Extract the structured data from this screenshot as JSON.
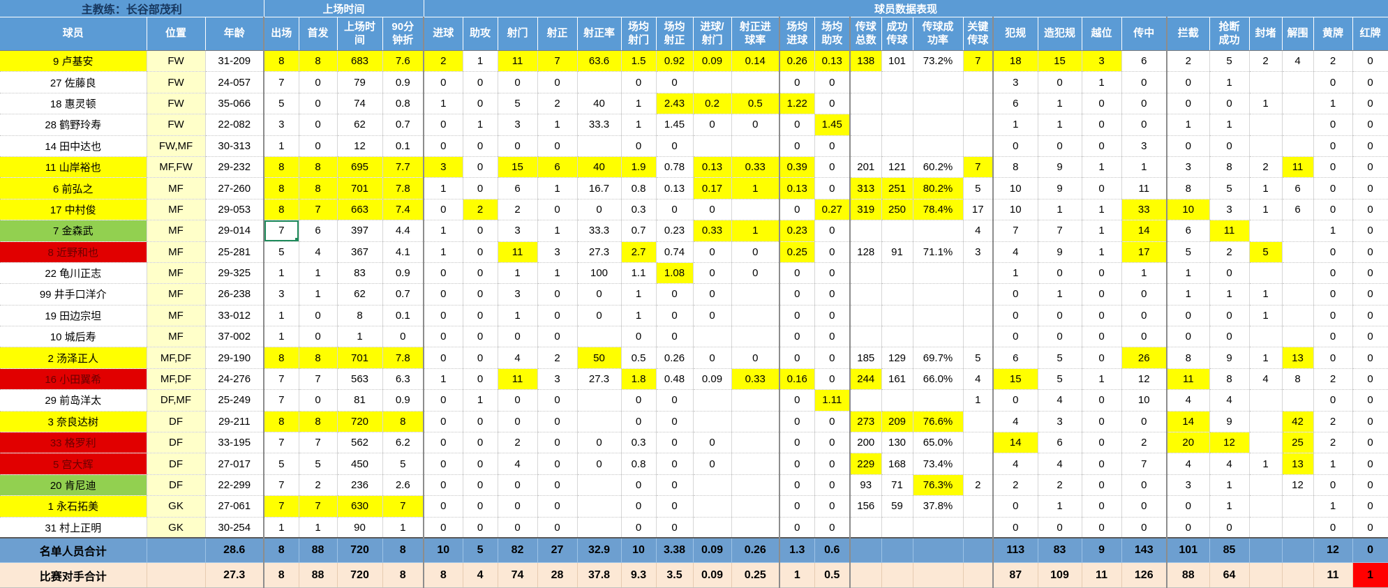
{
  "colors": {
    "header_blue": "#5B9BD5",
    "coach_text": "#17375E",
    "totals_blue": "#6D9FD0",
    "opponent_cream": "#FCE8D5",
    "highlight_yellow": "#FFFF00",
    "row_green": "#92D050",
    "row_red": "#E10000",
    "position_col_yellow": "#FFFFC9",
    "red_card_cell": "#FF0000"
  },
  "header": {
    "coach": "主教练：长谷部茂利",
    "group_playtime": "上场时间",
    "group_performance": "球员数据表现"
  },
  "columns": [
    {
      "key": "player",
      "label": "球员"
    },
    {
      "key": "position",
      "label": "位置"
    },
    {
      "key": "age",
      "label": "年龄"
    },
    {
      "key": "appearances",
      "label": "出场"
    },
    {
      "key": "starts",
      "label": "首发"
    },
    {
      "key": "minutes",
      "label": "上场时\n间"
    },
    {
      "key": "per-90",
      "label": "90分\n钟折"
    },
    {
      "key": "goals",
      "label": "进球"
    },
    {
      "key": "assists",
      "label": "助攻"
    },
    {
      "key": "shots",
      "label": "射门"
    },
    {
      "key": "shots-on-target",
      "label": "射正"
    },
    {
      "key": "shot-accuracy",
      "label": "射正率"
    },
    {
      "key": "shots-per-game",
      "label": "场均\n射门"
    },
    {
      "key": "sot-per-game",
      "label": "场均\n射正"
    },
    {
      "key": "goals-per-shot",
      "label": "进球/\n射门"
    },
    {
      "key": "goals-per-sot",
      "label": "射正进\n球率"
    },
    {
      "key": "goals-per-game",
      "label": "场均\n进球"
    },
    {
      "key": "assists-per-game",
      "label": "场均\n助攻"
    },
    {
      "key": "passes-total",
      "label": "传球\n总数"
    },
    {
      "key": "passes-completed",
      "label": "成功\n传球"
    },
    {
      "key": "pass-accuracy",
      "label": "传球成\n功率"
    },
    {
      "key": "key-passes",
      "label": "关键\n传球"
    },
    {
      "key": "fouls",
      "label": "犯规"
    },
    {
      "key": "fouled",
      "label": "造犯规"
    },
    {
      "key": "offsides",
      "label": "越位"
    },
    {
      "key": "crosses",
      "label": "传中"
    },
    {
      "key": "interceptions",
      "label": "拦截"
    },
    {
      "key": "tackles-won",
      "label": "抢断\n成功"
    },
    {
      "key": "blocks",
      "label": "封堵"
    },
    {
      "key": "clearances",
      "label": "解围"
    },
    {
      "key": "yellow-cards",
      "label": "黄牌"
    },
    {
      "key": "red-cards",
      "label": "红牌"
    }
  ],
  "players": [
    {
      "name": "9 卢基安",
      "row_color": "yellow",
      "cells": [
        "FW",
        "31-209",
        8,
        8,
        683,
        7.6,
        2,
        1,
        11,
        7,
        63.6,
        1.5,
        0.92,
        0.09,
        0.14,
        0.26,
        0.13,
        138,
        101,
        "73.2%",
        7,
        18,
        15,
        3,
        6,
        2,
        5,
        2,
        4,
        2,
        0
      ],
      "hl": [
        3,
        4,
        5,
        6,
        7,
        9,
        10,
        11,
        12,
        13,
        14,
        15,
        16,
        17,
        18,
        21,
        22,
        23,
        24
      ]
    },
    {
      "name": "27 佐藤良",
      "row_color": "none",
      "cells": [
        "FW",
        "24-057",
        7,
        0,
        79,
        0.9,
        0,
        0,
        0,
        0,
        "",
        0,
        0,
        "",
        "",
        0,
        0,
        "",
        "",
        "",
        "",
        3,
        0,
        1,
        0,
        0,
        1,
        "",
        "",
        0,
        0
      ],
      "hl": []
    },
    {
      "name": "18 惠灵顿",
      "row_color": "none",
      "cells": [
        "FW",
        "35-066",
        5,
        0,
        74,
        0.8,
        1,
        0,
        5,
        2,
        40,
        1,
        2.43,
        0.2,
        0.5,
        1.22,
        0,
        "",
        "",
        "",
        "",
        6,
        1,
        0,
        0,
        0,
        0,
        1,
        "",
        1,
        0
      ],
      "hl": [
        13,
        14,
        15,
        16
      ]
    },
    {
      "name": "28 鹤野玲寿",
      "row_color": "none",
      "cells": [
        "FW",
        "22-082",
        3,
        0,
        62,
        0.7,
        0,
        1,
        3,
        1,
        33.3,
        1,
        1.45,
        0,
        0,
        0,
        1.45,
        "",
        "",
        "",
        "",
        1,
        1,
        0,
        0,
        1,
        1,
        "",
        "",
        0,
        0
      ],
      "hl": [
        17
      ]
    },
    {
      "name": "14 田中达也",
      "row_color": "none",
      "cells": [
        "FW,MF",
        "30-313",
        1,
        0,
        12,
        0.1,
        0,
        0,
        0,
        0,
        "",
        0,
        0,
        "",
        "",
        0,
        0,
        "",
        "",
        "",
        "",
        0,
        0,
        0,
        3,
        0,
        0,
        "",
        "",
        0,
        0
      ],
      "hl": []
    },
    {
      "name": "11 山岸裕也",
      "row_color": "yellow",
      "cells": [
        "MF,FW",
        "29-232",
        8,
        8,
        695,
        7.7,
        3,
        0,
        15,
        6,
        40,
        1.9,
        0.78,
        0.13,
        0.33,
        0.39,
        0,
        201,
        121,
        "60.2%",
        7,
        8,
        9,
        1,
        1,
        3,
        8,
        2,
        11,
        0,
        0
      ],
      "hl": [
        3,
        4,
        5,
        6,
        7,
        9,
        10,
        11,
        12,
        14,
        15,
        16,
        21,
        29
      ]
    },
    {
      "name": "6 前弘之",
      "row_color": "yellow",
      "cells": [
        "MF",
        "27-260",
        8,
        8,
        701,
        7.8,
        1,
        0,
        6,
        1,
        16.7,
        0.8,
        0.13,
        0.17,
        1,
        0.13,
        0,
        313,
        251,
        "80.2%",
        5,
        10,
        9,
        0,
        11,
        8,
        5,
        1,
        6,
        0,
        0
      ],
      "hl": [
        3,
        4,
        5,
        6,
        14,
        15,
        16,
        18,
        19,
        20
      ]
    },
    {
      "name": "17 中村俊",
      "row_color": "yellow",
      "cells": [
        "MF",
        "29-053",
        8,
        7,
        663,
        7.4,
        0,
        2,
        2,
        0,
        0,
        0.3,
        0,
        0,
        "",
        0,
        0.27,
        319,
        250,
        "78.4%",
        17,
        10,
        1,
        1,
        33,
        10,
        3,
        1,
        6,
        0,
        0
      ],
      "hl": [
        3,
        4,
        5,
        6,
        8,
        17,
        18,
        19,
        20,
        25,
        26
      ]
    },
    {
      "name": "7 金森武",
      "row_color": "green",
      "selected_col": 3,
      "cells": [
        "MF",
        "29-014",
        7,
        6,
        397,
        4.4,
        1,
        0,
        3,
        1,
        33.3,
        0.7,
        0.23,
        0.33,
        1,
        0.23,
        0,
        "",
        "",
        "",
        4,
        7,
        7,
        1,
        14,
        6,
        11,
        "",
        "",
        1,
        0
      ],
      "hl": [
        14,
        15,
        16,
        25,
        27
      ]
    },
    {
      "name": "8 近野和也",
      "row_color": "red",
      "cells": [
        "MF",
        "25-281",
        5,
        4,
        367,
        4.1,
        1,
        0,
        11,
        3,
        27.3,
        2.7,
        0.74,
        0,
        0,
        0.25,
        0,
        128,
        91,
        "71.1%",
        3,
        4,
        9,
        1,
        17,
        5,
        2,
        5,
        "",
        0,
        0
      ],
      "hl": [
        9,
        12,
        16,
        25,
        28
      ]
    },
    {
      "name": "22 龟川正志",
      "row_color": "none",
      "cells": [
        "MF",
        "29-325",
        1,
        1,
        83,
        0.9,
        0,
        0,
        1,
        1,
        100,
        1.1,
        1.08,
        0,
        0,
        0,
        0,
        "",
        "",
        "",
        "",
        1,
        0,
        0,
        1,
        1,
        0,
        "",
        "",
        0,
        0
      ],
      "hl": [
        13
      ]
    },
    {
      "name": "99 井手口洋介",
      "row_color": "none",
      "cells": [
        "MF",
        "26-238",
        3,
        1,
        62,
        0.7,
        0,
        0,
        3,
        0,
        0,
        1,
        0,
        0,
        "",
        0,
        0,
        "",
        "",
        "",
        "",
        0,
        1,
        0,
        0,
        1,
        1,
        1,
        "",
        0,
        0
      ],
      "hl": []
    },
    {
      "name": "19 田边宗坦",
      "row_color": "none",
      "cells": [
        "MF",
        "33-012",
        1,
        0,
        8,
        0.1,
        0,
        0,
        1,
        0,
        0,
        1,
        0,
        0,
        "",
        0,
        0,
        "",
        "",
        "",
        "",
        0,
        0,
        0,
        0,
        0,
        0,
        1,
        "",
        0,
        0
      ],
      "hl": []
    },
    {
      "name": "10 城后寿",
      "row_color": "none",
      "cells": [
        "MF",
        "37-002",
        1,
        0,
        1,
        0,
        0,
        0,
        0,
        0,
        "",
        0,
        0,
        "",
        "",
        0,
        0,
        "",
        "",
        "",
        "",
        0,
        0,
        0,
        0,
        0,
        0,
        "",
        "",
        0,
        0
      ],
      "hl": []
    },
    {
      "name": "2 汤泽正人",
      "row_color": "yellow",
      "cells": [
        "MF,DF",
        "29-190",
        8,
        8,
        701,
        7.8,
        0,
        0,
        4,
        2,
        50,
        0.5,
        0.26,
        0,
        0,
        0,
        0,
        185,
        129,
        "69.7%",
        5,
        6,
        5,
        0,
        26,
        8,
        9,
        1,
        13,
        0,
        0
      ],
      "hl": [
        3,
        4,
        5,
        6,
        11,
        25,
        29
      ]
    },
    {
      "name": "16 小田翼希",
      "row_color": "red",
      "cells": [
        "MF,DF",
        "24-276",
        7,
        7,
        563,
        6.3,
        1,
        0,
        11,
        3,
        27.3,
        1.8,
        0.48,
        0.09,
        0.33,
        0.16,
        0,
        244,
        161,
        "66.0%",
        4,
        15,
        5,
        1,
        12,
        11,
        8,
        4,
        8,
        2,
        0
      ],
      "hl": [
        9,
        12,
        15,
        16,
        18,
        22,
        26
      ]
    },
    {
      "name": "29 前岛洋太",
      "row_color": "none",
      "cells": [
        "DF,MF",
        "25-249",
        7,
        0,
        81,
        0.9,
        0,
        1,
        0,
        0,
        "",
        0,
        0,
        "",
        "",
        0,
        1.11,
        "",
        "",
        "",
        1,
        0,
        4,
        0,
        10,
        4,
        4,
        "",
        "",
        0,
        0
      ],
      "hl": [
        17
      ]
    },
    {
      "name": "3 奈良达树",
      "row_color": "yellow",
      "cells": [
        "DF",
        "29-211",
        8,
        8,
        720,
        8,
        0,
        0,
        0,
        0,
        "",
        0,
        0,
        "",
        "",
        0,
        0,
        273,
        209,
        "76.6%",
        "",
        4,
        3,
        0,
        0,
        14,
        9,
        "",
        42,
        2,
        0
      ],
      "hl": [
        3,
        4,
        5,
        6,
        18,
        19,
        20,
        26,
        29
      ]
    },
    {
      "name": "33 格罗利",
      "row_color": "red",
      "cells": [
        "DF",
        "33-195",
        7,
        7,
        562,
        6.2,
        0,
        0,
        2,
        0,
        0,
        0.3,
        0,
        0,
        "",
        0,
        0,
        200,
        130,
        "65.0%",
        "",
        14,
        6,
        0,
        2,
        20,
        12,
        "",
        25,
        2,
        0
      ],
      "hl": [
        22,
        26,
        27,
        29
      ]
    },
    {
      "name": "5 宫大辉",
      "row_color": "red",
      "cells": [
        "DF",
        "27-017",
        5,
        5,
        450,
        5,
        0,
        0,
        4,
        0,
        0,
        0.8,
        0,
        0,
        "",
        0,
        0,
        229,
        168,
        "73.4%",
        "",
        4,
        4,
        0,
        7,
        4,
        4,
        1,
        13,
        1,
        0
      ],
      "hl": [
        18,
        29
      ]
    },
    {
      "name": "20 肯尼迪",
      "row_color": "green",
      "cells": [
        "DF",
        "22-299",
        7,
        2,
        236,
        2.6,
        0,
        0,
        0,
        0,
        "",
        0,
        0,
        "",
        "",
        0,
        0,
        93,
        71,
        "76.3%",
        2,
        2,
        2,
        0,
        0,
        3,
        1,
        "",
        12,
        0,
        0
      ],
      "hl": [
        20
      ]
    },
    {
      "name": "1 永石拓美",
      "row_color": "yellow",
      "cells": [
        "GK",
        "27-061",
        7,
        7,
        630,
        7,
        0,
        0,
        0,
        0,
        "",
        0,
        0,
        "",
        "",
        0,
        0,
        156,
        59,
        "37.8%",
        "",
        0,
        1,
        0,
        0,
        0,
        1,
        "",
        "",
        1,
        0
      ],
      "hl": [
        3,
        4,
        5,
        6
      ]
    },
    {
      "name": "31 村上正明",
      "row_color": "none",
      "cells": [
        "GK",
        "30-254",
        1,
        1,
        90,
        1,
        0,
        0,
        0,
        0,
        "",
        0,
        0,
        "",
        "",
        0,
        0,
        "",
        "",
        "",
        "",
        0,
        0,
        0,
        0,
        0,
        0,
        "",
        "",
        0,
        0
      ],
      "hl": []
    }
  ],
  "totals": [
    {
      "label": "名单人员合计",
      "style": "roster",
      "cells": [
        "",
        "28.6",
        8,
        88,
        720,
        8,
        10,
        5,
        82,
        27,
        32.9,
        10,
        3.38,
        0.09,
        0.26,
        1.3,
        0.6,
        "",
        "",
        "",
        "",
        113,
        83,
        9,
        143,
        101,
        85,
        "",
        "",
        12,
        0
      ],
      "red_cells": []
    },
    {
      "label": "比赛对手合计",
      "style": "opponent",
      "cells": [
        "",
        "27.3",
        8,
        88,
        720,
        8,
        8,
        4,
        74,
        28,
        37.8,
        9.3,
        3.5,
        0.09,
        0.25,
        1,
        0.5,
        "",
        "",
        "",
        "",
        87,
        109,
        11,
        126,
        88,
        64,
        "",
        "",
        11,
        1
      ],
      "red_cells": [
        31
      ]
    }
  ]
}
